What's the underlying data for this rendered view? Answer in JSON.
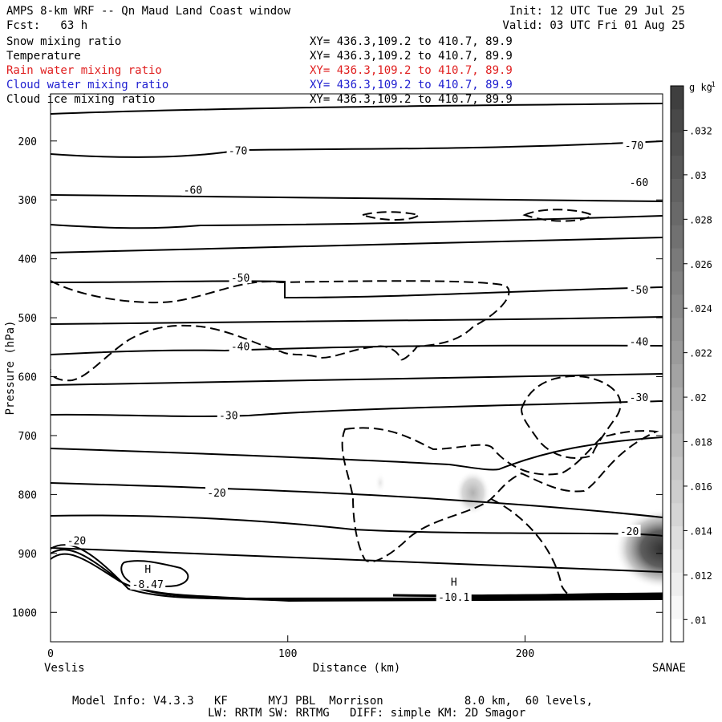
{
  "header": {
    "title": "AMPS 8-km WRF -- Qn Maud Land Coast window",
    "init": "Init: 12 UTC Tue 29 Jul 25",
    "forecast": "Fcst:   63 h",
    "valid": "Valid: 03 UTC Fri 01 Aug 25"
  },
  "fields": [
    {
      "name": "Snow mixing ratio",
      "xy": "XY= 436.3,109.2 to 410.7, 89.9",
      "color": "#000000"
    },
    {
      "name": "Temperature",
      "xy": "XY= 436.3,109.2 to 410.7, 89.9",
      "color": "#000000"
    },
    {
      "name": "Rain water mixing ratio",
      "xy": "XY= 436.3,109.2 to 410.7, 89.9",
      "color": "#e02020"
    },
    {
      "name": "Cloud water mixing ratio",
      "xy": "XY= 436.3,109.2 to 410.7, 89.9",
      "color": "#2020d0"
    },
    {
      "name": "Cloud ice mixing ratio",
      "xy": "XY= 436.3,109.2 to 410.7, 89.9",
      "color": "#000000"
    }
  ],
  "footer": {
    "line1": "Model Info: V4.3.3   KF      MYJ PBL  Morrison            8.0 km,  60 levels,",
    "line2": "LW: RRTM SW: RRTMG   DIFF: simple KM: 2D Smagor"
  },
  "chart_data": {
    "type": "contour-cross-section",
    "xlabel": "Distance (km)",
    "ylabel": "Pressure (hPa)",
    "xlim": [
      0,
      258
    ],
    "ylim": [
      1050,
      120
    ],
    "x_ticks": [
      0,
      100,
      200
    ],
    "y_ticks": [
      200,
      300,
      400,
      500,
      600,
      700,
      800,
      900,
      1000
    ],
    "endpoint_left": "Veslis",
    "endpoint_right": "SANAE",
    "colorbar": {
      "unit_label": "g kg",
      "unit_sup": "-1",
      "ticks": [
        ".01",
        ".012",
        ".014",
        ".016",
        ".018",
        ".02",
        ".022",
        ".024",
        ".026",
        ".028",
        ".03",
        ".032"
      ],
      "value_range": [
        0.009,
        0.034
      ]
    },
    "temperature_contour_labels": [
      {
        "text": "-70",
        "x": 79,
        "p": 216
      },
      {
        "text": "-70",
        "x": 246,
        "p": 207
      },
      {
        "text": "-60",
        "x": 60,
        "p": 283
      },
      {
        "text": "-60",
        "x": 248,
        "p": 270
      },
      {
        "text": "-50",
        "x": 80,
        "p": 432
      },
      {
        "text": "-50",
        "x": 248,
        "p": 452
      },
      {
        "text": "-40",
        "x": 80,
        "p": 548
      },
      {
        "text": "-40",
        "x": 248,
        "p": 540
      },
      {
        "text": "-30",
        "x": 75,
        "p": 665
      },
      {
        "text": "-30",
        "x": 248,
        "p": 635
      },
      {
        "text": "-20",
        "x": 70,
        "p": 797
      },
      {
        "text": "-20",
        "x": 244,
        "p": 862
      },
      {
        "text": "-20",
        "x": 11,
        "p": 878
      }
    ],
    "highs": [
      {
        "text": "H",
        "value": "-8.47",
        "x": 41,
        "p": 945
      },
      {
        "text": "H",
        "value": "-10.1",
        "x": 170,
        "p": 967
      }
    ],
    "shaded_maxima": [
      {
        "x": 178,
        "p": 797,
        "value": 0.018
      },
      {
        "x": 258,
        "p": 892,
        "value": 0.034
      },
      {
        "x": 139,
        "p": 780,
        "value": 0.01
      }
    ],
    "grid": false
  }
}
